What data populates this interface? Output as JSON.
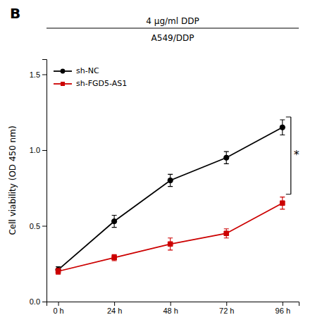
{
  "chart_data": {
    "type": "line",
    "title": "4 μg/ml DDP",
    "subtitle": "A549/DDP",
    "y_label": "Cell viability (OD 450 nm)",
    "annotations": [
      "B",
      "*"
    ],
    "x": [
      0,
      24,
      48,
      72,
      96
    ],
    "xlim": [
      -5,
      103
    ],
    "xticks": [
      {
        "value": 0,
        "label": "0 h"
      },
      {
        "value": 24,
        "label": "24 h"
      },
      {
        "value": 48,
        "label": "48 h"
      },
      {
        "value": 72,
        "label": "72 h"
      },
      {
        "value": 96,
        "label": "96 h"
      }
    ],
    "ylim": [
      0.0,
      1.6
    ],
    "yticks": [
      {
        "value": 0.0,
        "label": "0.0"
      },
      0.5,
      {
        "value": 1.0,
        "label": "1.0"
      },
      1.5
    ],
    "grid": false,
    "legend": "upper left",
    "series": [
      {
        "name": "sh-NC",
        "color": "#000000",
        "marker": "circle",
        "values": [
          0.21,
          0.53,
          0.8,
          0.95,
          1.15
        ],
        "errors": [
          0.02,
          0.04,
          0.04,
          0.04,
          0.05
        ]
      },
      {
        "name": "sh-FGD5-AS1",
        "color": "#cc0000",
        "marker": "square",
        "values": [
          0.2,
          0.29,
          0.38,
          0.45,
          0.65
        ],
        "errors": [
          0.02,
          0.02,
          0.04,
          0.03,
          0.04
        ]
      }
    ]
  }
}
